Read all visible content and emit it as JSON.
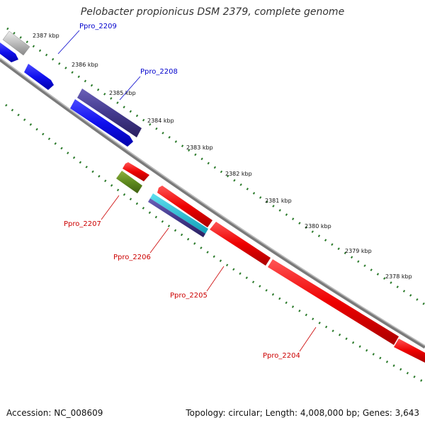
{
  "title": "Pelobacter propionicus DSM 2379, complete genome",
  "footer": {
    "accession": "Accession: NC_008609",
    "topology": "Topology: circular; Length: 4,008,000 bp; Genes: 3,643"
  },
  "colors": {
    "forward_strand": "#1a1aee",
    "reverse_strand": "#ee1111",
    "backbone": "#888888",
    "tick_dots": "#2a7a2a",
    "label_forward": "#0000cc",
    "label_reverse": "#cc0000"
  },
  "scale_ticks": [
    "2387 kbp",
    "2386 kbp",
    "2385 kbp",
    "2384 kbp",
    "2383 kbp",
    "2382 kbp",
    "2381 kbp",
    "2380 kbp",
    "2379 kbp",
    "2378 kbp"
  ],
  "gene_labels": [
    "Ppro_2209",
    "Ppro_2208",
    "Ppro_2207",
    "Ppro_2206",
    "Ppro_2205",
    "Ppro_2204"
  ]
}
